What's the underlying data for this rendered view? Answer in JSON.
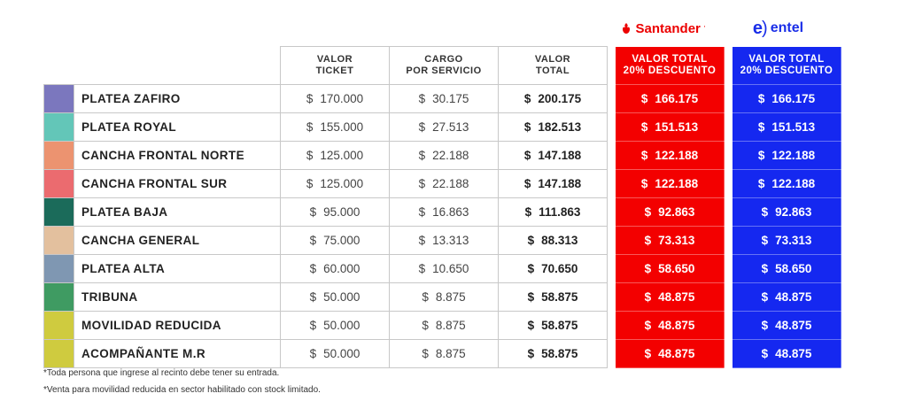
{
  "brands": {
    "santander": {
      "name": "Santander",
      "color": "#ec0000"
    },
    "entel": {
      "name": "entel",
      "color": "#1a2ee8"
    }
  },
  "headers": {
    "valor_ticket": [
      "VALOR",
      "TICKET"
    ],
    "cargo_servicio": [
      "CARGO",
      "POR SERVICIO"
    ],
    "valor_total": [
      "VALOR",
      "TOTAL"
    ],
    "santander_discount": [
      "VALOR TOTAL",
      "20% DESCUENTO"
    ],
    "entel_discount": [
      "VALOR TOTAL",
      "20% DESCUENTO"
    ]
  },
  "currency": "$",
  "rows": [
    {
      "name": "PLATEA ZAFIRO",
      "color": "#7b77be",
      "ticket": "170.000",
      "cargo": "30.175",
      "total": "200.175",
      "santander": "166.175",
      "entel": "166.175"
    },
    {
      "name": "PLATEA ROYAL",
      "color": "#63c6b8",
      "ticket": "155.000",
      "cargo": "27.513",
      "total": "182.513",
      "santander": "151.513",
      "entel": "151.513"
    },
    {
      "name": "CANCHA FRONTAL NORTE",
      "color": "#ec9370",
      "ticket": "125.000",
      "cargo": "22.188",
      "total": "147.188",
      "santander": "122.188",
      "entel": "122.188"
    },
    {
      "name": "CANCHA FRONTAL SUR",
      "color": "#eb6b6f",
      "ticket": "125.000",
      "cargo": "22.188",
      "total": "147.188",
      "santander": "122.188",
      "entel": "122.188"
    },
    {
      "name": "PLATEA BAJA",
      "color": "#1b6b5a",
      "ticket": "95.000",
      "cargo": "16.863",
      "total": "111.863",
      "santander": "92.863",
      "entel": "92.863"
    },
    {
      "name": "CANCHA GENERAL",
      "color": "#e3c09e",
      "ticket": "75.000",
      "cargo": "13.313",
      "total": "88.313",
      "santander": "73.313",
      "entel": "73.313"
    },
    {
      "name": "PLATEA ALTA",
      "color": "#7f97b2",
      "ticket": "60.000",
      "cargo": "10.650",
      "total": "70.650",
      "santander": "58.650",
      "entel": "58.650"
    },
    {
      "name": "TRIBUNA",
      "color": "#3f9b62",
      "ticket": "50.000",
      "cargo": "8.875",
      "total": "58.875",
      "santander": "48.875",
      "entel": "48.875"
    },
    {
      "name": "MOVILIDAD REDUCIDA",
      "color": "#cfcb3f",
      "ticket": "50.000",
      "cargo": "8.875",
      "total": "58.875",
      "santander": "48.875",
      "entel": "48.875"
    },
    {
      "name": "ACOMPAÑANTE M.R",
      "color": "#cfcb3f",
      "ticket": "50.000",
      "cargo": "8.875",
      "total": "58.875",
      "santander": "48.875",
      "entel": "48.875"
    }
  ],
  "notes": [
    "*Toda persona que ingrese al recinto debe tener su entrada.",
    "*Venta para movilidad reducida en sector habilitado con stock limitado."
  ]
}
